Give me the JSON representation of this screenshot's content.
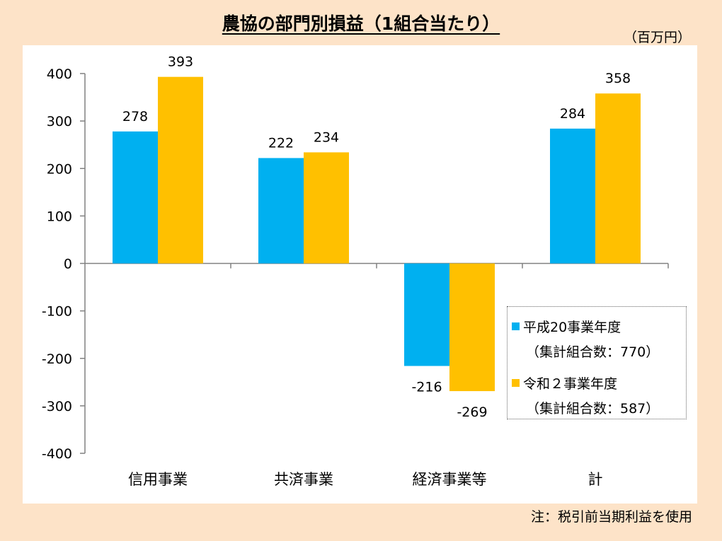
{
  "title": "農協の部門別損益（1組合当たり）",
  "unit_label": "（百万円）",
  "note": "注：税引前当期利益を使用",
  "colors": {
    "series1": "#00b0f0",
    "series2": "#ffc000"
  },
  "legend": [
    {
      "line1": "平成20事業年度",
      "line2": "（集計組合数：770）"
    },
    {
      "line1": "令和２事業年度",
      "line2": "（集計組合数：587）"
    }
  ],
  "chart_data": {
    "type": "bar",
    "categories": [
      "信用事業",
      "共済事業",
      "経済事業等",
      "計"
    ],
    "series": [
      {
        "name": "平成20事業年度",
        "values": [
          278,
          222,
          -216,
          284
        ]
      },
      {
        "name": "令和２事業年度",
        "values": [
          393,
          234,
          -269,
          358
        ]
      }
    ],
    "ylim": [
      -400,
      400
    ],
    "yticks": [
      400,
      300,
      200,
      100,
      0,
      -100,
      -200,
      -300,
      -400
    ],
    "legend_position": "lower-right",
    "grid": false
  }
}
